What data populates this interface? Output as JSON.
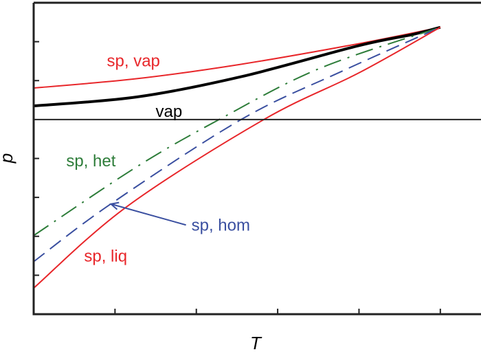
{
  "chart_data": {
    "type": "line",
    "title": "",
    "xlabel": "T",
    "ylabel": "p",
    "xlim": [
      0,
      5.5
    ],
    "ylim": [
      -5,
      3
    ],
    "x_ticks": [
      1,
      2,
      3,
      4,
      5
    ],
    "y_ticks": [
      -4,
      -3,
      -2,
      -1,
      1,
      2
    ],
    "tick_labels_shown": false,
    "zero_line": 0,
    "grid": false,
    "legend": "none",
    "series": [
      {
        "name": "sp, vap",
        "color": "#e8262a",
        "style": "solid",
        "width": 2,
        "x": [
          0,
          1.27,
          2.55,
          4.0,
          5.0
        ],
        "y": [
          0.81,
          1.05,
          1.42,
          1.95,
          2.37
        ]
      },
      {
        "name": "vap",
        "color": "#000000",
        "style": "solid",
        "width": 4,
        "x": [
          0,
          1.27,
          2.55,
          4.0,
          4.67,
          5.0
        ],
        "y": [
          0.35,
          0.58,
          1.1,
          1.9,
          2.19,
          2.37
        ]
      },
      {
        "name": "sp, het",
        "color": "#2e7d3a",
        "style": "dashdot",
        "width": 2,
        "x": [
          0,
          1.27,
          2.28,
          3.5,
          5.0
        ],
        "y": [
          -2.98,
          -1.21,
          0,
          1.3,
          2.37
        ]
      },
      {
        "name": "sp, hom",
        "color": "#3a4fa0",
        "style": "dash",
        "width": 2,
        "x": [
          0,
          0.94,
          2.55,
          3.8,
          5.0
        ],
        "y": [
          -3.65,
          -2.18,
          0,
          1.25,
          2.37
        ]
      },
      {
        "name": "sp, liq",
        "color": "#e8262a",
        "style": "solid",
        "width": 2,
        "x": [
          0,
          1.15,
          2.83,
          4.0,
          5.0
        ],
        "y": [
          -4.33,
          -2.23,
          0,
          1.2,
          2.37
        ]
      }
    ],
    "annotations": [
      {
        "text": "sp, vap",
        "color": "#e8262a",
        "x": 0.9,
        "y": 1.37
      },
      {
        "text": "vap",
        "color": "#000000",
        "x": 1.5,
        "y": 0.07
      },
      {
        "text": "sp, het",
        "color": "#2e7d3a",
        "x": 0.4,
        "y": -1.2
      },
      {
        "text": "sp, hom",
        "color": "#3a4fa0",
        "x": 1.94,
        "y": -2.85,
        "arrow_to": [
          0.95,
          -2.17
        ]
      },
      {
        "text": "sp, liq",
        "color": "#e8262a",
        "x": 0.62,
        "y": -3.65
      }
    ]
  }
}
